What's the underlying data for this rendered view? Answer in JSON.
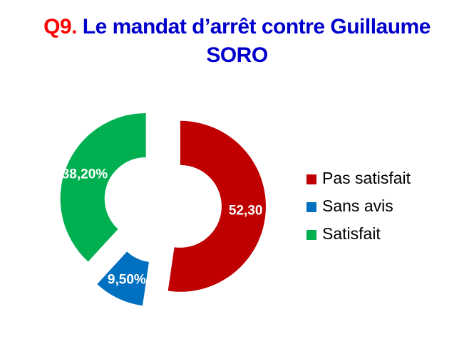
{
  "chart_data": {
    "type": "donut",
    "title_number": "Q9.",
    "title": "Le mandat d’arrêt contre Guillaume SORO",
    "categories": [
      "Pas satisfait",
      "Sans avis",
      "Satisfait"
    ],
    "values": [
      52.3,
      9.5,
      38.2
    ],
    "value_labels": [
      "52,30",
      "9,50%",
      "38,20%"
    ],
    "colors": [
      "#c00000",
      "#0070c0",
      "#00b050"
    ],
    "legend": "right"
  }
}
